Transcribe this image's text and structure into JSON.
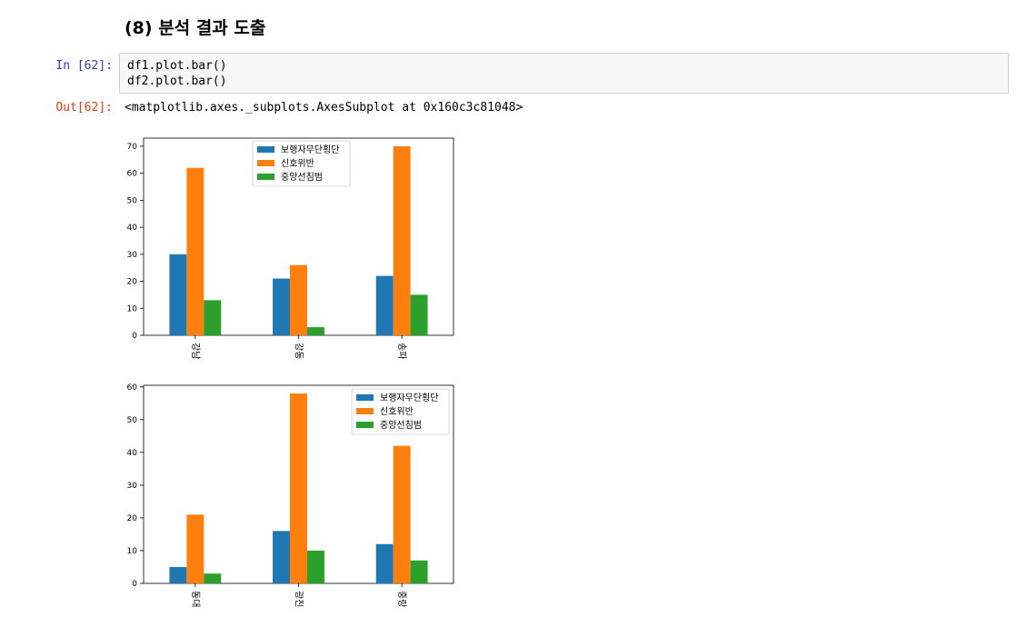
{
  "heading": "(8) 분석 결과 도출",
  "cell": {
    "in_prompt": "In [62]:",
    "code_lines": [
      "df1.plot.bar()",
      "df2.plot.bar()"
    ],
    "out_prompt": "Out[62]:",
    "output_text": "<matplotlib.axes._subplots.AxesSubplot at 0x160c3c81048>"
  },
  "colors": {
    "series_1": "#1f77b4",
    "series_2": "#ff7f0e",
    "series_3": "#2ca02c"
  },
  "chart_data": [
    {
      "type": "bar",
      "categories": [
        "강남",
        "강동",
        "송파"
      ],
      "series": [
        {
          "name": "보행자무단횡단",
          "values": [
            30,
            21,
            22
          ]
        },
        {
          "name": "신호위반",
          "values": [
            62,
            26,
            70
          ]
        },
        {
          "name": "중앙선침범",
          "values": [
            13,
            3,
            15
          ]
        }
      ],
      "ylim": [
        0,
        73
      ],
      "yticks": [
        0,
        10,
        20,
        30,
        40,
        50,
        60,
        70
      ],
      "legend": "upper-center"
    },
    {
      "type": "bar",
      "categories": [
        "동대",
        "광진",
        "중랑"
      ],
      "series": [
        {
          "name": "보행자무단횡단",
          "values": [
            5,
            16,
            12
          ]
        },
        {
          "name": "신호위반",
          "values": [
            21,
            58,
            42
          ]
        },
        {
          "name": "중앙선침범",
          "values": [
            3,
            10,
            7
          ]
        }
      ],
      "ylim": [
        0,
        60.5
      ],
      "yticks": [
        0,
        10,
        20,
        30,
        40,
        50,
        60
      ],
      "legend": "top-right"
    }
  ]
}
